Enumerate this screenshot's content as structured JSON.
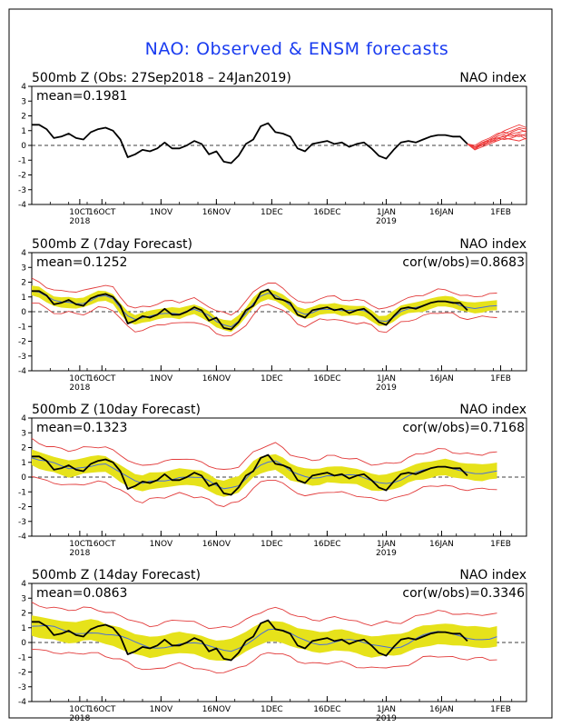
{
  "title": "NAO: Observed & ENSM forecasts",
  "colors": {
    "title": "#1a3cf0",
    "observed": "#000000",
    "ensemble_band": "#e6e21a",
    "ensemble_mean": "#4a6fd8",
    "ensemble_extremes": "#e23b3b",
    "forecast_members": "#ee3a3a"
  },
  "x_ticks": [
    {
      "day": 13,
      "line1": "10CT",
      "line2": "2018"
    },
    {
      "day": 19,
      "line1": "16OCT",
      "line2": ""
    },
    {
      "day": 35,
      "line1": "1NOV",
      "line2": ""
    },
    {
      "day": 50,
      "line1": "16NOV",
      "line2": ""
    },
    {
      "day": 65,
      "line1": "1DEC",
      "line2": ""
    },
    {
      "day": 80,
      "line1": "16DEC",
      "line2": ""
    },
    {
      "day": 96,
      "line1": "1JAN",
      "line2": "2019"
    },
    {
      "day": 111,
      "line1": "16JAN",
      "line2": ""
    },
    {
      "day": 127,
      "line1": "1FEB",
      "line2": ""
    }
  ],
  "chart_data": [
    {
      "type": "line",
      "panel_title": "500mb Z (Obs: 27Sep2018 – 24Jan2019)",
      "right_label": "NAO index",
      "mean_label": "mean=0.1981",
      "cor_label": "",
      "x_range_days": [
        0,
        134
      ],
      "ylim": [
        -4,
        4
      ],
      "y_ticks": [
        4,
        3,
        2,
        1,
        0,
        -1,
        -2,
        -3,
        -4
      ],
      "observed": {
        "x": [
          0,
          2,
          4,
          6,
          8,
          10,
          12,
          14,
          16,
          18,
          20,
          22,
          24,
          26,
          28,
          30,
          32,
          34,
          36,
          38,
          40,
          42,
          44,
          46,
          48,
          50,
          52,
          54,
          56,
          58,
          60,
          62,
          64,
          66,
          68,
          70,
          72,
          74,
          76,
          78,
          80,
          82,
          84,
          86,
          88,
          90,
          92,
          94,
          96,
          98,
          100,
          102,
          104,
          106,
          108,
          110,
          112,
          114,
          116,
          118
        ],
        "y": [
          1.4,
          1.4,
          1.1,
          0.5,
          0.6,
          0.8,
          0.5,
          0.4,
          0.9,
          1.1,
          1.2,
          1.0,
          0.4,
          -0.8,
          -0.6,
          -0.3,
          -0.4,
          -0.2,
          0.2,
          -0.2,
          -0.2,
          0.0,
          0.3,
          0.1,
          -0.6,
          -0.4,
          -1.1,
          -1.2,
          -0.7,
          0.1,
          0.4,
          1.3,
          1.5,
          0.9,
          0.8,
          0.6,
          -0.2,
          -0.4,
          0.1,
          0.2,
          0.3,
          0.1,
          0.2,
          -0.1,
          0.1,
          0.2,
          -0.2,
          -0.7,
          -0.9,
          -0.3,
          0.2,
          0.3,
          0.2,
          0.4,
          0.6,
          0.7,
          0.7,
          0.6,
          0.6,
          0.1
        ]
      },
      "forecast_members": {
        "x": [
          118,
          120,
          122,
          124,
          126,
          128,
          130,
          132,
          134
        ],
        "members": [
          [
            0.1,
            -0.2,
            0.0,
            0.3,
            0.6,
            0.8,
            1.0,
            1.2,
            1.1
          ],
          [
            0.1,
            -0.1,
            0.2,
            0.4,
            0.5,
            0.6,
            0.8,
            0.9,
            1.0
          ],
          [
            0.1,
            -0.3,
            0.1,
            0.2,
            0.4,
            0.7,
            0.6,
            0.8,
            0.6
          ],
          [
            0.1,
            0.0,
            0.3,
            0.5,
            0.8,
            0.9,
            0.7,
            0.6,
            0.8
          ],
          [
            0.1,
            -0.2,
            0.2,
            0.3,
            0.3,
            0.5,
            0.9,
            1.1,
            0.9
          ],
          [
            0.1,
            -0.1,
            0.0,
            0.2,
            0.5,
            0.4,
            0.5,
            0.7,
            0.4
          ],
          [
            0.1,
            -0.2,
            0.1,
            0.4,
            0.7,
            1.0,
            1.2,
            1.4,
            1.2
          ],
          [
            0.1,
            -0.3,
            -0.1,
            0.1,
            0.3,
            0.5,
            0.4,
            0.3,
            0.5
          ]
        ]
      }
    },
    {
      "type": "line",
      "panel_title": "500mb Z (7day Forecast)",
      "right_label": "NAO index",
      "mean_label": "mean=0.1252",
      "cor_label": "cor(w/obs)=0.8683",
      "x_range_days": [
        0,
        134
      ],
      "ylim": [
        -4,
        4
      ],
      "y_ticks": [
        4,
        3,
        2,
        1,
        0,
        -1,
        -2,
        -3,
        -4
      ],
      "forecast_days": 7,
      "observed": {
        "x": [
          0,
          2,
          4,
          6,
          8,
          10,
          12,
          14,
          16,
          18,
          20,
          22,
          24,
          26,
          28,
          30,
          32,
          34,
          36,
          38,
          40,
          42,
          44,
          46,
          48,
          50,
          52,
          54,
          56,
          58,
          60,
          62,
          64,
          66,
          68,
          70,
          72,
          74,
          76,
          78,
          80,
          82,
          84,
          86,
          88,
          90,
          92,
          94,
          96,
          98,
          100,
          102,
          104,
          106,
          108,
          110,
          112,
          114,
          116,
          118
        ],
        "y": [
          1.4,
          1.4,
          1.1,
          0.5,
          0.6,
          0.8,
          0.5,
          0.4,
          0.9,
          1.1,
          1.2,
          1.0,
          0.4,
          -0.8,
          -0.6,
          -0.3,
          -0.4,
          -0.2,
          0.2,
          -0.2,
          -0.2,
          0.0,
          0.3,
          0.1,
          -0.6,
          -0.4,
          -1.1,
          -1.2,
          -0.7,
          0.1,
          0.4,
          1.3,
          1.5,
          0.9,
          0.8,
          0.6,
          -0.2,
          -0.4,
          0.1,
          0.2,
          0.3,
          0.1,
          0.2,
          -0.1,
          0.1,
          0.2,
          -0.2,
          -0.7,
          -0.9,
          -0.3,
          0.2,
          0.3,
          0.2,
          0.4,
          0.6,
          0.7,
          0.7,
          0.6,
          0.6,
          0.1
        ]
      },
      "band_half_width": 0.35,
      "extremes_half_width": 0.75,
      "mean_offset": 0.05
    },
    {
      "type": "line",
      "panel_title": "500mb Z (10day Forecast)",
      "right_label": "NAO index",
      "mean_label": "mean=0.1323",
      "cor_label": "cor(w/obs)=0.7168",
      "x_range_days": [
        0,
        134
      ],
      "ylim": [
        -4,
        4
      ],
      "y_ticks": [
        4,
        3,
        2,
        1,
        0,
        -1,
        -2,
        -3,
        -4
      ],
      "forecast_days": 10,
      "observed": {
        "x": [
          0,
          2,
          4,
          6,
          8,
          10,
          12,
          14,
          16,
          18,
          20,
          22,
          24,
          26,
          28,
          30,
          32,
          34,
          36,
          38,
          40,
          42,
          44,
          46,
          48,
          50,
          52,
          54,
          56,
          58,
          60,
          62,
          64,
          66,
          68,
          70,
          72,
          74,
          76,
          78,
          80,
          82,
          84,
          86,
          88,
          90,
          92,
          94,
          96,
          98,
          100,
          102,
          104,
          106,
          108,
          110,
          112,
          114,
          116,
          118
        ],
        "y": [
          1.4,
          1.4,
          1.1,
          0.5,
          0.6,
          0.8,
          0.5,
          0.4,
          0.9,
          1.1,
          1.2,
          1.0,
          0.4,
          -0.8,
          -0.6,
          -0.3,
          -0.4,
          -0.2,
          0.2,
          -0.2,
          -0.2,
          0.0,
          0.3,
          0.1,
          -0.6,
          -0.4,
          -1.1,
          -1.2,
          -0.7,
          0.1,
          0.4,
          1.3,
          1.5,
          0.9,
          0.8,
          0.6,
          -0.2,
          -0.4,
          0.1,
          0.2,
          0.3,
          0.1,
          0.2,
          -0.1,
          0.1,
          0.2,
          -0.2,
          -0.7,
          -0.9,
          -0.3,
          0.2,
          0.3,
          0.2,
          0.4,
          0.6,
          0.7,
          0.7,
          0.6,
          0.6,
          0.1
        ]
      },
      "band_half_width": 0.55,
      "extremes_half_width": 1.2,
      "mean_offset": 0.1
    },
    {
      "type": "line",
      "panel_title": "500mb Z (14day Forecast)",
      "right_label": "NAO index",
      "mean_label": "mean=0.0863",
      "cor_label": "cor(w/obs)=0.3346",
      "x_range_days": [
        0,
        134
      ],
      "ylim": [
        -4,
        4
      ],
      "y_ticks": [
        4,
        3,
        2,
        1,
        0,
        -1,
        -2,
        -3,
        -4
      ],
      "forecast_days": 14,
      "observed": {
        "x": [
          0,
          2,
          4,
          6,
          8,
          10,
          12,
          14,
          16,
          18,
          20,
          22,
          24,
          26,
          28,
          30,
          32,
          34,
          36,
          38,
          40,
          42,
          44,
          46,
          48,
          50,
          52,
          54,
          56,
          58,
          60,
          62,
          64,
          66,
          68,
          70,
          72,
          74,
          76,
          78,
          80,
          82,
          84,
          86,
          88,
          90,
          92,
          94,
          96,
          98,
          100,
          102,
          104,
          106,
          108,
          110,
          112,
          114,
          116,
          118
        ],
        "y": [
          1.4,
          1.4,
          1.1,
          0.5,
          0.6,
          0.8,
          0.5,
          0.4,
          0.9,
          1.1,
          1.2,
          1.0,
          0.4,
          -0.8,
          -0.6,
          -0.3,
          -0.4,
          -0.2,
          0.2,
          -0.2,
          -0.2,
          0.0,
          0.3,
          0.1,
          -0.6,
          -0.4,
          -1.1,
          -1.2,
          -0.7,
          0.1,
          0.4,
          1.3,
          1.5,
          0.9,
          0.8,
          0.6,
          -0.2,
          -0.4,
          0.1,
          0.2,
          0.3,
          0.1,
          0.2,
          -0.1,
          0.1,
          0.2,
          -0.2,
          -0.7,
          -0.9,
          -0.3,
          0.2,
          0.3,
          0.2,
          0.4,
          0.6,
          0.7,
          0.7,
          0.6,
          0.6,
          0.1
        ]
      },
      "band_half_width": 0.7,
      "extremes_half_width": 1.5,
      "mean_offset": 0.2
    }
  ]
}
